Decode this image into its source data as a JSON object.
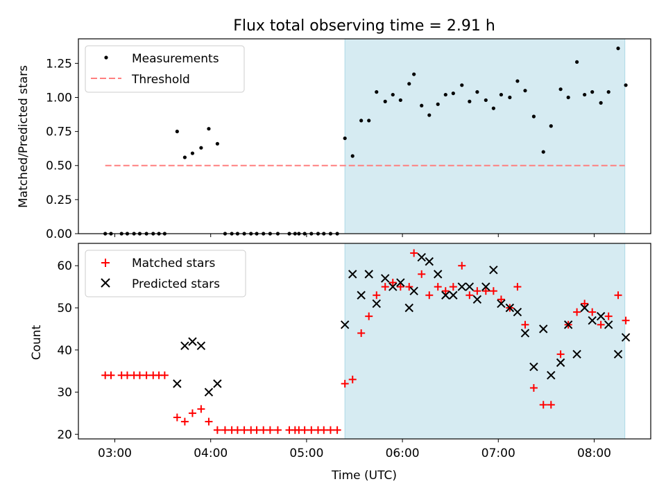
{
  "figure": {
    "title": "Flux total observing time = 2.91 h",
    "xlabel": "Time (UTC)",
    "x_ticks": [
      "03:00",
      "04:00",
      "05:00",
      "06:00",
      "07:00",
      "08:00"
    ],
    "x_tick_hours": [
      3,
      4,
      5,
      6,
      7,
      8
    ],
    "xlim_hours": [
      2.62,
      8.59
    ],
    "highlight_span_hours": [
      5.4,
      8.32
    ],
    "colors": {
      "highlight": "#add8e6",
      "threshold": "#ff7f7f",
      "matched": "#ff0000",
      "predicted": "#000000",
      "measurement": "#000000"
    }
  },
  "chart_data": [
    {
      "type": "scatter",
      "panel": "top",
      "ylabel": "Matched/Predicted stars",
      "ylim": [
        0,
        1.43
      ],
      "y_ticks": [
        "0.00",
        "0.25",
        "0.50",
        "0.75",
        "1.00",
        "1.25"
      ],
      "y_tick_values": [
        0,
        0.25,
        0.5,
        0.75,
        1.0,
        1.25
      ],
      "legend": {
        "placement": "upper-left",
        "entries": [
          "Measurements",
          "Threshold"
        ]
      },
      "threshold": {
        "name": "Threshold",
        "y": 0.5,
        "x_range_hours": [
          2.9,
          8.32
        ]
      },
      "series": [
        {
          "name": "Measurements",
          "x_hours": [
            2.9,
            2.96,
            3.07,
            3.13,
            3.2,
            3.26,
            3.33,
            3.4,
            3.46,
            3.52,
            3.65,
            3.73,
            3.81,
            3.9,
            3.98,
            4.07,
            4.15,
            4.22,
            4.28,
            4.35,
            4.42,
            4.48,
            4.55,
            4.62,
            4.7,
            4.82,
            4.88,
            4.92,
            4.98,
            5.05,
            5.12,
            5.18,
            5.25,
            5.32,
            5.4,
            5.48,
            5.57,
            5.65,
            5.73,
            5.82,
            5.9,
            5.98,
            6.07,
            6.12,
            6.2,
            6.28,
            6.37,
            6.45,
            6.53,
            6.62,
            6.7,
            6.78,
            6.87,
            6.95,
            7.03,
            7.12,
            7.2,
            7.28,
            7.37,
            7.47,
            7.55,
            7.65,
            7.73,
            7.82,
            7.9,
            7.98,
            8.07,
            8.15,
            8.25,
            8.33
          ],
          "y": [
            0,
            0,
            0,
            0,
            0,
            0,
            0,
            0,
            0,
            0,
            0.75,
            0.56,
            0.59,
            0.63,
            0.77,
            0.66,
            0,
            0,
            0,
            0,
            0,
            0,
            0,
            0,
            0,
            0,
            0,
            0,
            0,
            0,
            0,
            0,
            0,
            0,
            0.7,
            0.57,
            0.83,
            0.83,
            1.04,
            0.97,
            1.02,
            0.98,
            1.1,
            1.17,
            0.94,
            0.87,
            0.95,
            1.02,
            1.03,
            1.09,
            0.97,
            1.04,
            0.98,
            0.92,
            1.02,
            1.0,
            1.12,
            1.05,
            0.86,
            0.6,
            0.79,
            1.06,
            1.0,
            1.26,
            1.02,
            1.04,
            0.96,
            1.04,
            1.36,
            1.09
          ]
        }
      ]
    },
    {
      "type": "scatter",
      "panel": "bottom",
      "ylabel": "Count",
      "ylim": [
        18.9,
        65.3
      ],
      "y_ticks": [
        "20",
        "30",
        "40",
        "50",
        "60"
      ],
      "y_tick_values": [
        20,
        30,
        40,
        50,
        60
      ],
      "legend": {
        "placement": "upper-left",
        "entries": [
          "Matched stars",
          "Predicted stars"
        ]
      },
      "series": [
        {
          "name": "Matched stars",
          "x_hours": [
            2.9,
            2.96,
            3.07,
            3.13,
            3.2,
            3.26,
            3.33,
            3.4,
            3.46,
            3.52,
            3.65,
            3.73,
            3.81,
            3.9,
            3.98,
            4.07,
            4.15,
            4.22,
            4.28,
            4.35,
            4.42,
            4.48,
            4.55,
            4.62,
            4.7,
            4.82,
            4.88,
            4.92,
            4.98,
            5.05,
            5.12,
            5.18,
            5.25,
            5.32,
            5.4,
            5.48,
            5.57,
            5.65,
            5.73,
            5.82,
            5.9,
            5.98,
            6.07,
            6.12,
            6.2,
            6.28,
            6.37,
            6.45,
            6.53,
            6.62,
            6.7,
            6.78,
            6.87,
            6.95,
            7.03,
            7.12,
            7.2,
            7.28,
            7.37,
            7.47,
            7.55,
            7.65,
            7.73,
            7.82,
            7.9,
            7.98,
            8.07,
            8.15,
            8.25,
            8.33
          ],
          "y": [
            34,
            34,
            34,
            34,
            34,
            34,
            34,
            34,
            34,
            34,
            24,
            23,
            25,
            26,
            23,
            21,
            21,
            21,
            21,
            21,
            21,
            21,
            21,
            21,
            21,
            21,
            21,
            21,
            21,
            21,
            21,
            21,
            21,
            21,
            32,
            33,
            44,
            48,
            53,
            55,
            56,
            55,
            55,
            63,
            58,
            53,
            55,
            54,
            55,
            60,
            53,
            54,
            54,
            54,
            52,
            50,
            55,
            46,
            31,
            27,
            27,
            39,
            46,
            49,
            51,
            49,
            46,
            48,
            53,
            47
          ]
        },
        {
          "name": "Predicted stars",
          "x_hours": [
            3.65,
            3.73,
            3.81,
            3.9,
            3.98,
            4.07,
            5.4,
            5.48,
            5.57,
            5.65,
            5.73,
            5.82,
            5.9,
            5.98,
            6.07,
            6.12,
            6.2,
            6.28,
            6.37,
            6.45,
            6.53,
            6.62,
            6.7,
            6.78,
            6.87,
            6.95,
            7.03,
            7.12,
            7.2,
            7.28,
            7.37,
            7.47,
            7.55,
            7.65,
            7.73,
            7.82,
            7.9,
            7.98,
            8.07,
            8.15,
            8.25,
            8.33
          ],
          "y": [
            32,
            41,
            42,
            41,
            30,
            32,
            46,
            58,
            53,
            58,
            51,
            57,
            55,
            56,
            50,
            54,
            62,
            61,
            58,
            53,
            53,
            55,
            55,
            52,
            55,
            59,
            51,
            50,
            49,
            44,
            36,
            45,
            34,
            37,
            46,
            39,
            50,
            47,
            48,
            46,
            39,
            43
          ]
        }
      ]
    }
  ]
}
